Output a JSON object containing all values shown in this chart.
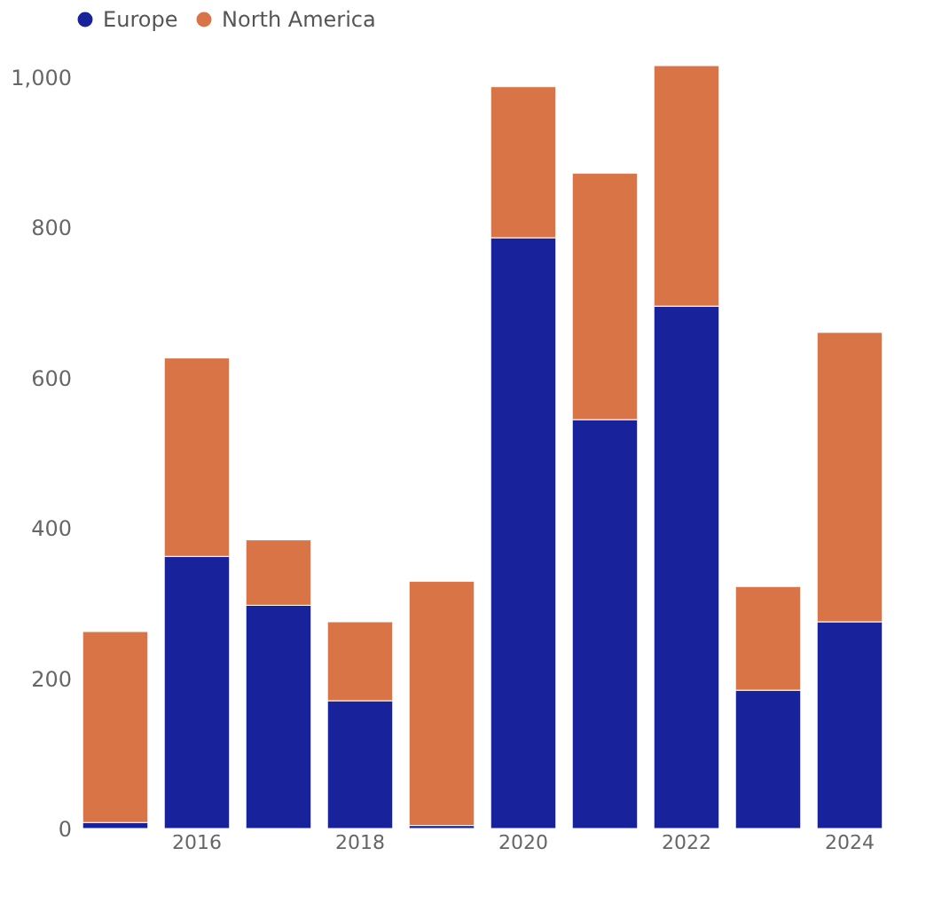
{
  "chart_data": {
    "type": "bar",
    "stacked": true,
    "categories": [
      null,
      "2016",
      null,
      "2018",
      null,
      "2020",
      null,
      "2022",
      null,
      "2024"
    ],
    "series": [
      {
        "name": "Europe",
        "color": "#18229a",
        "values": [
          8,
          362,
          297,
          170,
          4,
          786,
          544,
          695,
          184,
          275
        ]
      },
      {
        "name": "North America",
        "color": "#d97446",
        "values": [
          254,
          264,
          87,
          105,
          325,
          201,
          328,
          320,
          138,
          385
        ]
      }
    ],
    "ylim": [
      0,
      1015
    ],
    "yticks": [
      0,
      200,
      400,
      600,
      800,
      {
        "value": 1000,
        "label": "1,000"
      }
    ],
    "grid": false,
    "legend": "top"
  }
}
